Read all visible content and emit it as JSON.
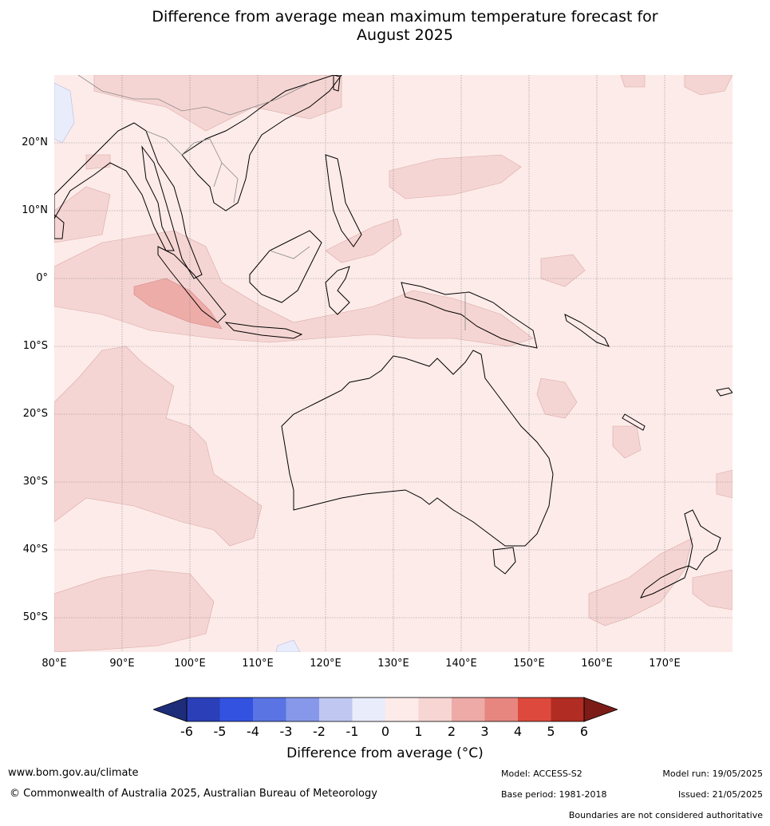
{
  "title_line1": "Difference from average mean maximum temperature forecast for",
  "title_line2": "August 2025",
  "lat_labels": [
    "20°N",
    "10°N",
    "0°",
    "10°S",
    "20°S",
    "30°S",
    "40°S",
    "50°S"
  ],
  "lon_labels": [
    "80°E",
    "90°E",
    "100°E",
    "110°E",
    "120°E",
    "130°E",
    "140°E",
    "150°E",
    "160°E",
    "170°E"
  ],
  "colorbar": {
    "ticks": [
      "-6",
      "-5",
      "-4",
      "-3",
      "-2",
      "-1",
      "0",
      "1",
      "2",
      "3",
      "4",
      "5",
      "6"
    ],
    "colors": [
      "#1e2d7a",
      "#2a3fb8",
      "#3452e0",
      "#5a74e4",
      "#8798ea",
      "#c0c8f2",
      "#e9ecfb",
      "#fcebe9",
      "#f6d5d3",
      "#edaaa6",
      "#e6867f",
      "#dd4a3d",
      "#b12c22",
      "#7c1c17"
    ],
    "label": "Difference from average ($^\\circ$C)",
    "label_display": "Difference from average (°C)"
  },
  "footer": {
    "website": "www.bom.gov.au/climate",
    "copyright": "© Commonwealth of Australia 2025, Australian Bureau of Meteorology",
    "model": "Model: ACCESS-S2",
    "base_period": "Base period: 1981-2018",
    "model_run": "Model run: 19/05/2025",
    "issued": "Issued: 21/05/2025",
    "disclaimer": "Boundaries are not considered authoritative"
  }
}
